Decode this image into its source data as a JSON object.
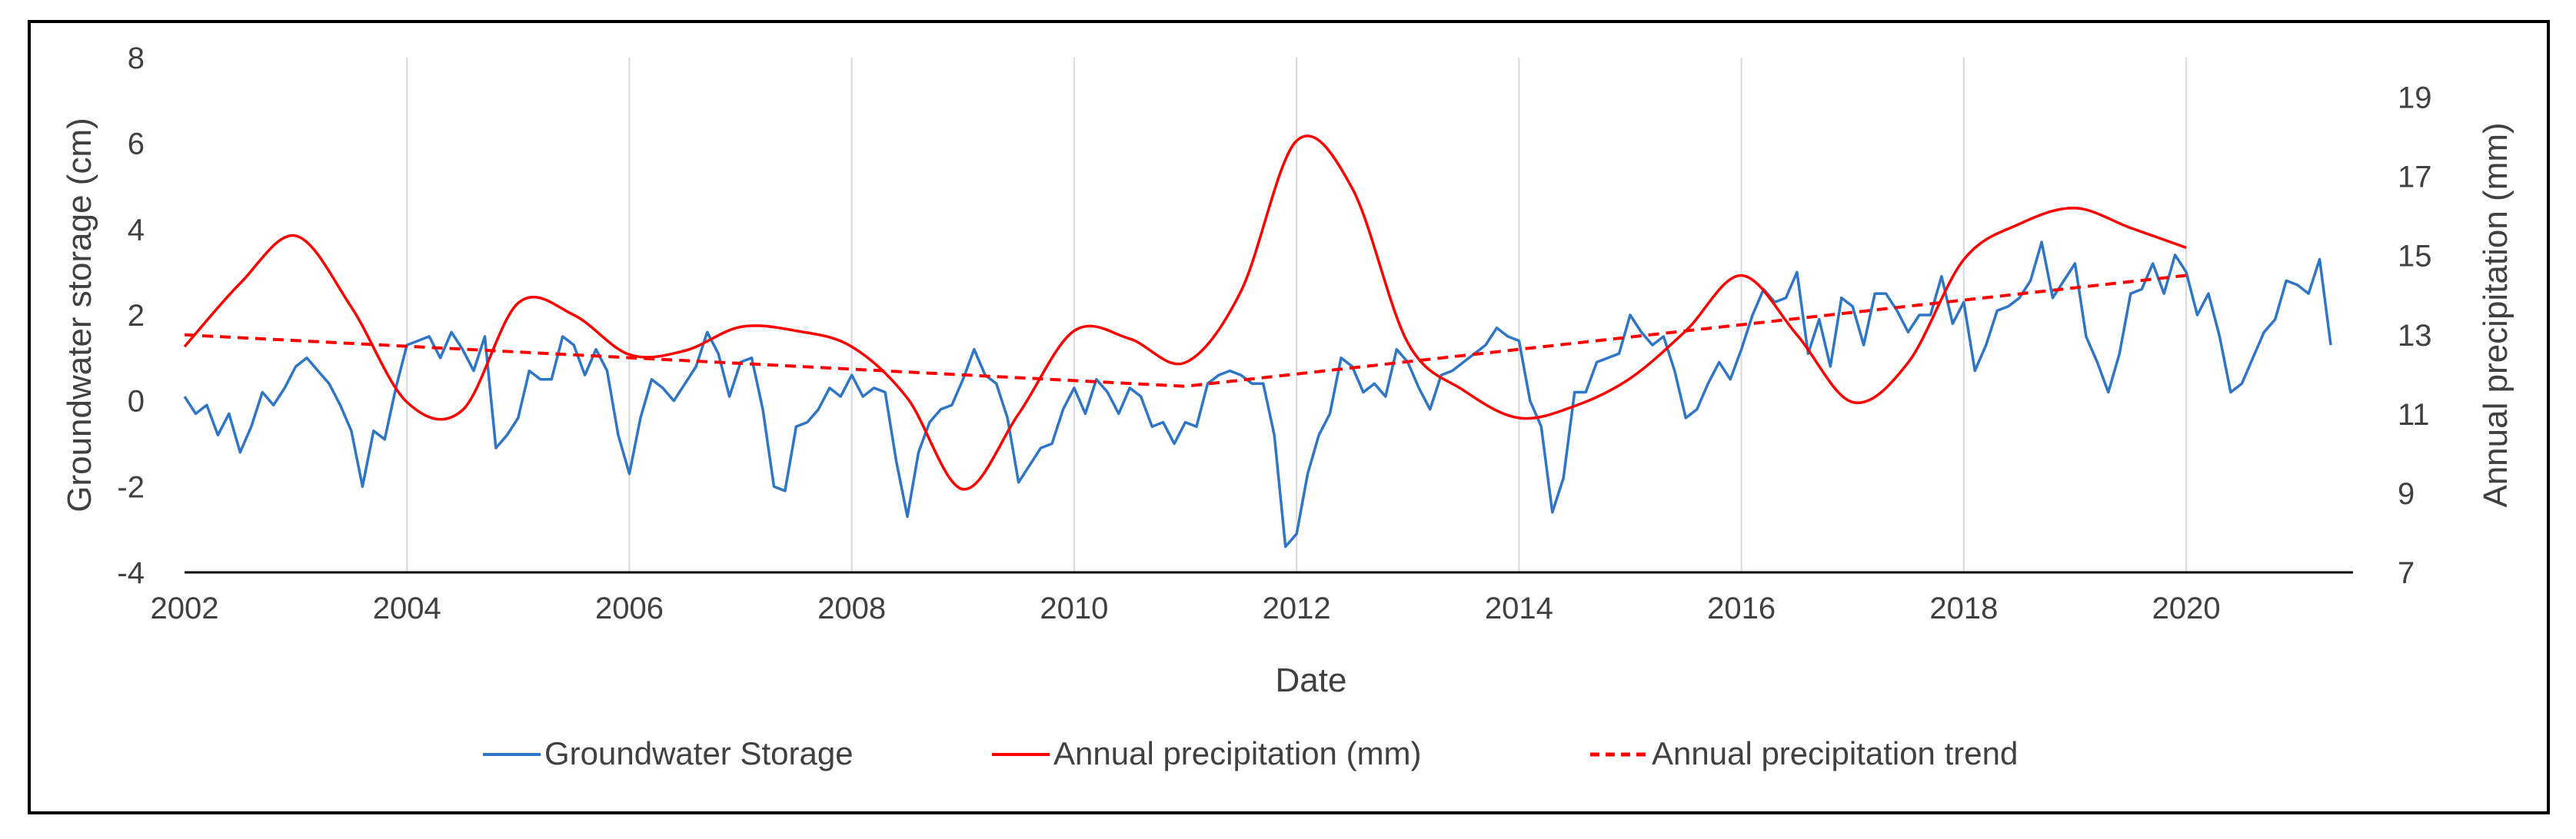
{
  "chart_data": {
    "type": "line",
    "title": "",
    "xlabel": "Date",
    "ylabel": "Groundwater storage (cm)",
    "y2label": "Annual precipitation (mm)",
    "xlim": [
      2002,
      2021.5
    ],
    "ylim": [
      -4,
      8
    ],
    "y2lim": [
      7,
      20
    ],
    "x_ticks": [
      2002,
      2004,
      2006,
      2008,
      2010,
      2012,
      2014,
      2016,
      2018,
      2020
    ],
    "x_tick_labels": [
      "2002",
      "2004",
      "2006",
      "2008",
      "2010",
      "2012",
      "2014",
      "2016",
      "2018",
      "2020"
    ],
    "y_ticks": [
      -4,
      -2,
      0,
      2,
      4,
      6,
      8
    ],
    "y_tick_labels": [
      "-4",
      "-2",
      "0",
      "2",
      "4",
      "6",
      "8"
    ],
    "y2_ticks": [
      7,
      9,
      11,
      13,
      15,
      17,
      19
    ],
    "y2_tick_labels": [
      "7",
      "9",
      "11",
      "13",
      "15",
      "17",
      "19"
    ],
    "grid": "vertical",
    "legend_position": "bottom",
    "series": [
      {
        "name": "Groundwater Storage",
        "axis": "left",
        "color": "#2e75c6",
        "style": "solid",
        "points": [
          [
            2002.0,
            0.1
          ],
          [
            2002.1,
            -0.3
          ],
          [
            2002.2,
            -0.1
          ],
          [
            2002.3,
            -0.8
          ],
          [
            2002.4,
            -0.3
          ],
          [
            2002.5,
            -1.2
          ],
          [
            2002.6,
            -0.6
          ],
          [
            2002.7,
            0.2
          ],
          [
            2002.8,
            -0.1
          ],
          [
            2002.9,
            0.3
          ],
          [
            2003.0,
            0.8
          ],
          [
            2003.1,
            1.0
          ],
          [
            2003.2,
            0.7
          ],
          [
            2003.3,
            0.4
          ],
          [
            2003.4,
            -0.1
          ],
          [
            2003.5,
            -0.7
          ],
          [
            2003.6,
            -2.0
          ],
          [
            2003.7,
            -0.7
          ],
          [
            2003.8,
            -0.9
          ],
          [
            2003.9,
            0.3
          ],
          [
            2004.0,
            1.3
          ],
          [
            2004.1,
            1.4
          ],
          [
            2004.2,
            1.5
          ],
          [
            2004.3,
            1.0
          ],
          [
            2004.4,
            1.6
          ],
          [
            2004.5,
            1.2
          ],
          [
            2004.6,
            0.7
          ],
          [
            2004.7,
            1.5
          ],
          [
            2004.8,
            -1.1
          ],
          [
            2004.9,
            -0.8
          ],
          [
            2005.0,
            -0.4
          ],
          [
            2005.1,
            0.7
          ],
          [
            2005.2,
            0.5
          ],
          [
            2005.3,
            0.5
          ],
          [
            2005.4,
            1.5
          ],
          [
            2005.5,
            1.3
          ],
          [
            2005.6,
            0.6
          ],
          [
            2005.7,
            1.2
          ],
          [
            2005.8,
            0.7
          ],
          [
            2005.9,
            -0.8
          ],
          [
            2006.0,
            -1.7
          ],
          [
            2006.1,
            -0.4
          ],
          [
            2006.2,
            0.5
          ],
          [
            2006.3,
            0.3
          ],
          [
            2006.4,
            0.0
          ],
          [
            2006.5,
            0.4
          ],
          [
            2006.6,
            0.8
          ],
          [
            2006.7,
            1.6
          ],
          [
            2006.8,
            1.1
          ],
          [
            2006.9,
            0.1
          ],
          [
            2007.0,
            0.9
          ],
          [
            2007.1,
            1.0
          ],
          [
            2007.2,
            -0.2
          ],
          [
            2007.3,
            -2.0
          ],
          [
            2007.4,
            -2.1
          ],
          [
            2007.5,
            -0.6
          ],
          [
            2007.6,
            -0.5
          ],
          [
            2007.7,
            -0.2
          ],
          [
            2007.8,
            0.3
          ],
          [
            2007.9,
            0.1
          ],
          [
            2008.0,
            0.6
          ],
          [
            2008.1,
            0.1
          ],
          [
            2008.2,
            0.3
          ],
          [
            2008.3,
            0.2
          ],
          [
            2008.4,
            -1.4
          ],
          [
            2008.5,
            -2.7
          ],
          [
            2008.6,
            -1.2
          ],
          [
            2008.7,
            -0.5
          ],
          [
            2008.8,
            -0.2
          ],
          [
            2008.9,
            -0.1
          ],
          [
            2009.0,
            0.5
          ],
          [
            2009.1,
            1.2
          ],
          [
            2009.2,
            0.6
          ],
          [
            2009.3,
            0.4
          ],
          [
            2009.4,
            -0.4
          ],
          [
            2009.5,
            -1.9
          ],
          [
            2009.6,
            -1.5
          ],
          [
            2009.7,
            -1.1
          ],
          [
            2009.8,
            -1.0
          ],
          [
            2009.9,
            -0.2
          ],
          [
            2010.0,
            0.3
          ],
          [
            2010.1,
            -0.3
          ],
          [
            2010.2,
            0.5
          ],
          [
            2010.3,
            0.2
          ],
          [
            2010.4,
            -0.3
          ],
          [
            2010.5,
            0.3
          ],
          [
            2010.6,
            0.1
          ],
          [
            2010.7,
            -0.6
          ],
          [
            2010.8,
            -0.5
          ],
          [
            2010.9,
            -1.0
          ],
          [
            2011.0,
            -0.5
          ],
          [
            2011.1,
            -0.6
          ],
          [
            2011.2,
            0.4
          ],
          [
            2011.3,
            0.6
          ],
          [
            2011.4,
            0.7
          ],
          [
            2011.5,
            0.6
          ],
          [
            2011.6,
            0.4
          ],
          [
            2011.7,
            0.4
          ],
          [
            2011.8,
            -0.8
          ],
          [
            2011.9,
            -3.4
          ],
          [
            2012.0,
            -3.1
          ],
          [
            2012.1,
            -1.7
          ],
          [
            2012.2,
            -0.8
          ],
          [
            2012.3,
            -0.3
          ],
          [
            2012.4,
            1.0
          ],
          [
            2012.5,
            0.8
          ],
          [
            2012.6,
            0.2
          ],
          [
            2012.7,
            0.4
          ],
          [
            2012.8,
            0.1
          ],
          [
            2012.9,
            1.2
          ],
          [
            2013.0,
            0.9
          ],
          [
            2013.1,
            0.3
          ],
          [
            2013.2,
            -0.2
          ],
          [
            2013.3,
            0.6
          ],
          [
            2013.4,
            0.7
          ],
          [
            2013.5,
            0.9
          ],
          [
            2013.6,
            1.1
          ],
          [
            2013.7,
            1.3
          ],
          [
            2013.8,
            1.7
          ],
          [
            2013.9,
            1.5
          ],
          [
            2014.0,
            1.4
          ],
          [
            2014.1,
            0.0
          ],
          [
            2014.2,
            -0.6
          ],
          [
            2014.3,
            -2.6
          ],
          [
            2014.4,
            -1.8
          ],
          [
            2014.5,
            0.2
          ],
          [
            2014.6,
            0.2
          ],
          [
            2014.7,
            0.9
          ],
          [
            2014.8,
            1.0
          ],
          [
            2014.9,
            1.1
          ],
          [
            2015.0,
            2.0
          ],
          [
            2015.1,
            1.6
          ],
          [
            2015.2,
            1.3
          ],
          [
            2015.3,
            1.5
          ],
          [
            2015.4,
            0.7
          ],
          [
            2015.5,
            -0.4
          ],
          [
            2015.6,
            -0.2
          ],
          [
            2015.7,
            0.4
          ],
          [
            2015.8,
            0.9
          ],
          [
            2015.9,
            0.5
          ],
          [
            2016.0,
            1.2
          ],
          [
            2016.1,
            2.0
          ],
          [
            2016.2,
            2.6
          ],
          [
            2016.3,
            2.3
          ],
          [
            2016.4,
            2.4
          ],
          [
            2016.5,
            3.0
          ],
          [
            2016.6,
            1.1
          ],
          [
            2016.7,
            1.9
          ],
          [
            2016.8,
            0.8
          ],
          [
            2016.9,
            2.4
          ],
          [
            2017.0,
            2.2
          ],
          [
            2017.1,
            1.3
          ],
          [
            2017.2,
            2.5
          ],
          [
            2017.3,
            2.5
          ],
          [
            2017.4,
            2.1
          ],
          [
            2017.5,
            1.6
          ],
          [
            2017.6,
            2.0
          ],
          [
            2017.7,
            2.0
          ],
          [
            2017.8,
            2.9
          ],
          [
            2017.9,
            1.8
          ],
          [
            2018.0,
            2.3
          ],
          [
            2018.1,
            0.7
          ],
          [
            2018.2,
            1.3
          ],
          [
            2018.3,
            2.1
          ],
          [
            2018.4,
            2.2
          ],
          [
            2018.5,
            2.4
          ],
          [
            2018.6,
            2.8
          ],
          [
            2018.7,
            3.7
          ],
          [
            2018.8,
            2.4
          ],
          [
            2018.9,
            2.8
          ],
          [
            2019.0,
            3.2
          ],
          [
            2019.1,
            1.5
          ],
          [
            2019.2,
            0.9
          ],
          [
            2019.3,
            0.2
          ],
          [
            2019.4,
            1.1
          ],
          [
            2019.5,
            2.5
          ],
          [
            2019.6,
            2.6
          ],
          [
            2019.7,
            3.2
          ],
          [
            2019.8,
            2.5
          ],
          [
            2019.9,
            3.4
          ],
          [
            2020.0,
            3.0
          ],
          [
            2020.1,
            2.0
          ],
          [
            2020.2,
            2.5
          ],
          [
            2020.3,
            1.5
          ],
          [
            2020.4,
            0.2
          ],
          [
            2020.5,
            0.4
          ],
          [
            2020.6,
            1.0
          ],
          [
            2020.7,
            1.6
          ],
          [
            2020.8,
            1.9
          ],
          [
            2020.9,
            2.8
          ],
          [
            2021.0,
            2.7
          ],
          [
            2021.1,
            2.5
          ],
          [
            2021.2,
            3.3
          ],
          [
            2021.3,
            1.3
          ]
        ]
      },
      {
        "name": "Annual  precipitation (mm)",
        "axis": "right",
        "color": "#ff0000",
        "style": "solid",
        "points": [
          [
            2002.0,
            12.7
          ],
          [
            2002.5,
            14.3
          ],
          [
            2003.0,
            15.5
          ],
          [
            2003.5,
            13.7
          ],
          [
            2004.0,
            11.3
          ],
          [
            2004.5,
            11.1
          ],
          [
            2005.0,
            13.8
          ],
          [
            2005.5,
            13.5
          ],
          [
            2006.0,
            12.5
          ],
          [
            2006.5,
            12.6
          ],
          [
            2007.0,
            13.2
          ],
          [
            2007.5,
            13.1
          ],
          [
            2008.0,
            12.7
          ],
          [
            2008.5,
            11.4
          ],
          [
            2009.0,
            9.1
          ],
          [
            2009.5,
            11.0
          ],
          [
            2010.0,
            13.1
          ],
          [
            2010.5,
            12.9
          ],
          [
            2011.0,
            12.3
          ],
          [
            2011.5,
            14.1
          ],
          [
            2012.0,
            17.9
          ],
          [
            2012.5,
            16.7
          ],
          [
            2013.0,
            12.8
          ],
          [
            2013.5,
            11.6
          ],
          [
            2014.0,
            10.9
          ],
          [
            2014.5,
            11.2
          ],
          [
            2015.0,
            11.9
          ],
          [
            2015.5,
            13.1
          ],
          [
            2016.0,
            14.5
          ],
          [
            2016.5,
            13.0
          ],
          [
            2017.0,
            11.3
          ],
          [
            2017.5,
            12.3
          ],
          [
            2018.0,
            14.9
          ],
          [
            2018.5,
            15.8
          ],
          [
            2019.0,
            16.2
          ],
          [
            2019.5,
            15.7
          ],
          [
            2020.0,
            15.2
          ]
        ]
      },
      {
        "name": "Annual precipitation trend",
        "axis": "right",
        "color": "#ff0000",
        "style": "dashed",
        "points": [
          [
            2002.0,
            13.0
          ],
          [
            2011.0,
            11.7
          ],
          [
            2020.0,
            14.5
          ]
        ]
      }
    ]
  }
}
